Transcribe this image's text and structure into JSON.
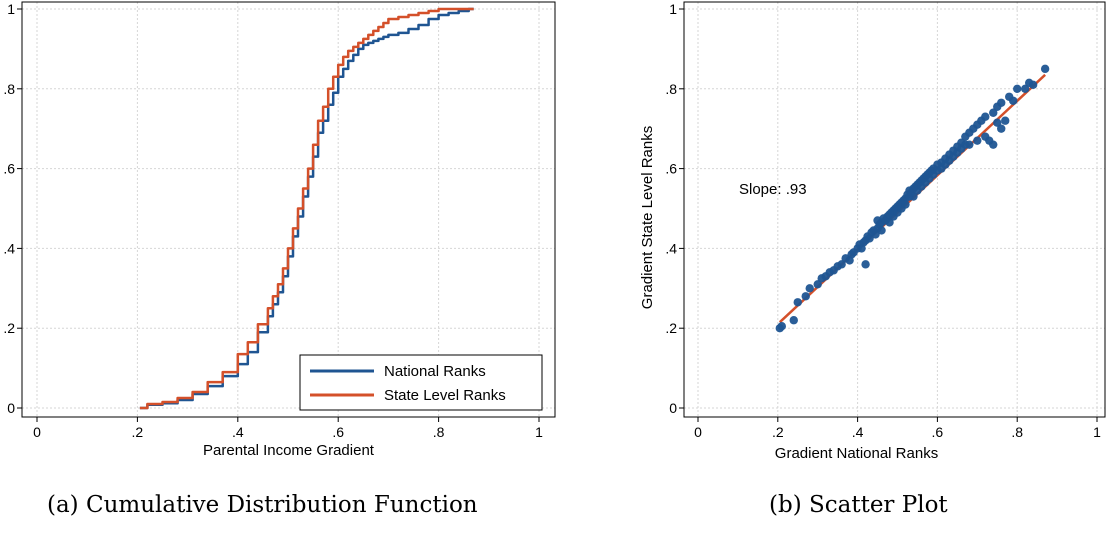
{
  "chart_data": [
    {
      "type": "line",
      "panel": "a",
      "caption": "(a) Cumulative Distribution Function",
      "xlabel": "Parental Income Gradient",
      "ylabel": "",
      "xlim": [
        0,
        1
      ],
      "ylim": [
        0,
        1
      ],
      "xticks": [
        0,
        0.2,
        0.4,
        0.6,
        0.8,
        1
      ],
      "yticks": [
        0,
        0.2,
        0.4,
        0.6,
        0.8,
        1
      ],
      "xtick_labels": [
        "0",
        ".2",
        ".4",
        ".6",
        ".8",
        "1"
      ],
      "ytick_labels": [
        "0",
        ".2",
        ".4",
        ".6",
        ".8",
        "1"
      ],
      "grid": true,
      "legend": "bottom-right",
      "series": [
        {
          "name": "National Ranks",
          "color": "#1f5592",
          "x": [
            0.205,
            0.22,
            0.25,
            0.28,
            0.31,
            0.34,
            0.37,
            0.4,
            0.42,
            0.44,
            0.46,
            0.47,
            0.48,
            0.49,
            0.5,
            0.51,
            0.52,
            0.53,
            0.54,
            0.55,
            0.56,
            0.57,
            0.58,
            0.59,
            0.6,
            0.61,
            0.62,
            0.63,
            0.64,
            0.65,
            0.66,
            0.67,
            0.68,
            0.69,
            0.7,
            0.72,
            0.74,
            0.76,
            0.78,
            0.8,
            0.82,
            0.84,
            0.86,
            0.87
          ],
          "y": [
            0.0,
            0.008,
            0.012,
            0.02,
            0.035,
            0.055,
            0.08,
            0.11,
            0.14,
            0.19,
            0.23,
            0.26,
            0.29,
            0.33,
            0.38,
            0.43,
            0.48,
            0.53,
            0.58,
            0.63,
            0.69,
            0.72,
            0.76,
            0.79,
            0.83,
            0.85,
            0.87,
            0.885,
            0.9,
            0.91,
            0.915,
            0.92,
            0.925,
            0.93,
            0.935,
            0.94,
            0.95,
            0.96,
            0.975,
            0.985,
            0.99,
            0.995,
            1.0,
            1.0
          ]
        },
        {
          "name": "State Level Ranks",
          "color": "#d4502a",
          "x": [
            0.205,
            0.22,
            0.25,
            0.28,
            0.31,
            0.34,
            0.37,
            0.4,
            0.42,
            0.44,
            0.46,
            0.47,
            0.48,
            0.49,
            0.5,
            0.51,
            0.52,
            0.53,
            0.54,
            0.55,
            0.56,
            0.57,
            0.58,
            0.59,
            0.6,
            0.61,
            0.62,
            0.63,
            0.64,
            0.65,
            0.66,
            0.67,
            0.68,
            0.69,
            0.7,
            0.72,
            0.74,
            0.76,
            0.78,
            0.8,
            0.82,
            0.84,
            0.86,
            0.87
          ],
          "y": [
            0.0,
            0.01,
            0.015,
            0.025,
            0.04,
            0.065,
            0.09,
            0.135,
            0.165,
            0.21,
            0.25,
            0.28,
            0.31,
            0.35,
            0.4,
            0.45,
            0.5,
            0.55,
            0.6,
            0.66,
            0.72,
            0.755,
            0.8,
            0.83,
            0.86,
            0.88,
            0.895,
            0.905,
            0.915,
            0.925,
            0.935,
            0.945,
            0.955,
            0.965,
            0.975,
            0.98,
            0.985,
            0.99,
            0.995,
            1.0,
            1.0,
            1.0,
            1.0,
            1.0
          ]
        }
      ]
    },
    {
      "type": "scatter",
      "panel": "b",
      "caption": "(b) Scatter Plot",
      "xlabel": "Gradient National Ranks",
      "ylabel": "Gradient State Level Ranks",
      "xlim": [
        0,
        1
      ],
      "ylim": [
        0,
        1
      ],
      "xticks": [
        0,
        0.2,
        0.4,
        0.6,
        0.8,
        1
      ],
      "yticks": [
        0,
        0.2,
        0.4,
        0.6,
        0.8,
        1
      ],
      "xtick_labels": [
        "0",
        ".2",
        ".4",
        ".6",
        ".8",
        "1"
      ],
      "ytick_labels": [
        "0",
        ".2",
        ".4",
        ".6",
        ".8",
        "1"
      ],
      "grid": true,
      "annotation": "Slope: .93",
      "point_color": "#1f5592",
      "fit_color": "#d4502a",
      "fit_line": {
        "x": [
          0.205,
          0.87
        ],
        "y": [
          0.215,
          0.835
        ]
      },
      "points": [
        [
          0.205,
          0.2
        ],
        [
          0.21,
          0.205
        ],
        [
          0.24,
          0.22
        ],
        [
          0.25,
          0.265
        ],
        [
          0.27,
          0.28
        ],
        [
          0.28,
          0.3
        ],
        [
          0.3,
          0.31
        ],
        [
          0.31,
          0.325
        ],
        [
          0.32,
          0.33
        ],
        [
          0.33,
          0.34
        ],
        [
          0.34,
          0.345
        ],
        [
          0.35,
          0.355
        ],
        [
          0.36,
          0.36
        ],
        [
          0.37,
          0.375
        ],
        [
          0.38,
          0.37
        ],
        [
          0.385,
          0.385
        ],
        [
          0.39,
          0.39
        ],
        [
          0.4,
          0.4
        ],
        [
          0.405,
          0.41
        ],
        [
          0.41,
          0.4
        ],
        [
          0.415,
          0.415
        ],
        [
          0.42,
          0.42
        ],
        [
          0.42,
          0.36
        ],
        [
          0.425,
          0.43
        ],
        [
          0.43,
          0.425
        ],
        [
          0.435,
          0.44
        ],
        [
          0.44,
          0.445
        ],
        [
          0.445,
          0.435
        ],
        [
          0.45,
          0.45
        ],
        [
          0.45,
          0.47
        ],
        [
          0.455,
          0.46
        ],
        [
          0.46,
          0.465
        ],
        [
          0.46,
          0.445
        ],
        [
          0.465,
          0.475
        ],
        [
          0.47,
          0.47
        ],
        [
          0.475,
          0.48
        ],
        [
          0.48,
          0.485
        ],
        [
          0.48,
          0.465
        ],
        [
          0.485,
          0.49
        ],
        [
          0.49,
          0.495
        ],
        [
          0.49,
          0.48
        ],
        [
          0.495,
          0.5
        ],
        [
          0.5,
          0.505
        ],
        [
          0.5,
          0.49
        ],
        [
          0.505,
          0.51
        ],
        [
          0.51,
          0.515
        ],
        [
          0.51,
          0.5
        ],
        [
          0.515,
          0.52
        ],
        [
          0.52,
          0.525
        ],
        [
          0.52,
          0.51
        ],
        [
          0.525,
          0.535
        ],
        [
          0.53,
          0.53
        ],
        [
          0.53,
          0.545
        ],
        [
          0.535,
          0.54
        ],
        [
          0.54,
          0.55
        ],
        [
          0.54,
          0.53
        ],
        [
          0.545,
          0.555
        ],
        [
          0.55,
          0.56
        ],
        [
          0.55,
          0.545
        ],
        [
          0.555,
          0.565
        ],
        [
          0.56,
          0.57
        ],
        [
          0.56,
          0.555
        ],
        [
          0.565,
          0.575
        ],
        [
          0.57,
          0.58
        ],
        [
          0.57,
          0.565
        ],
        [
          0.575,
          0.585
        ],
        [
          0.58,
          0.59
        ],
        [
          0.58,
          0.575
        ],
        [
          0.585,
          0.595
        ],
        [
          0.59,
          0.6
        ],
        [
          0.59,
          0.585
        ],
        [
          0.6,
          0.61
        ],
        [
          0.6,
          0.595
        ],
        [
          0.61,
          0.615
        ],
        [
          0.61,
          0.6
        ],
        [
          0.62,
          0.625
        ],
        [
          0.62,
          0.61
        ],
        [
          0.63,
          0.635
        ],
        [
          0.63,
          0.62
        ],
        [
          0.64,
          0.645
        ],
        [
          0.64,
          0.63
        ],
        [
          0.65,
          0.655
        ],
        [
          0.65,
          0.64
        ],
        [
          0.66,
          0.665
        ],
        [
          0.66,
          0.65
        ],
        [
          0.67,
          0.68
        ],
        [
          0.67,
          0.66
        ],
        [
          0.68,
          0.69
        ],
        [
          0.69,
          0.7
        ],
        [
          0.7,
          0.71
        ],
        [
          0.71,
          0.72
        ],
        [
          0.72,
          0.73
        ],
        [
          0.72,
          0.68
        ],
        [
          0.73,
          0.67
        ],
        [
          0.74,
          0.66
        ],
        [
          0.74,
          0.74
        ],
        [
          0.75,
          0.755
        ],
        [
          0.75,
          0.715
        ],
        [
          0.76,
          0.765
        ],
        [
          0.77,
          0.72
        ],
        [
          0.78,
          0.78
        ],
        [
          0.79,
          0.77
        ],
        [
          0.8,
          0.8
        ],
        [
          0.82,
          0.8
        ],
        [
          0.83,
          0.815
        ],
        [
          0.84,
          0.81
        ],
        [
          0.87,
          0.85
        ],
        [
          0.76,
          0.7
        ],
        [
          0.7,
          0.67
        ],
        [
          0.68,
          0.66
        ]
      ]
    }
  ]
}
